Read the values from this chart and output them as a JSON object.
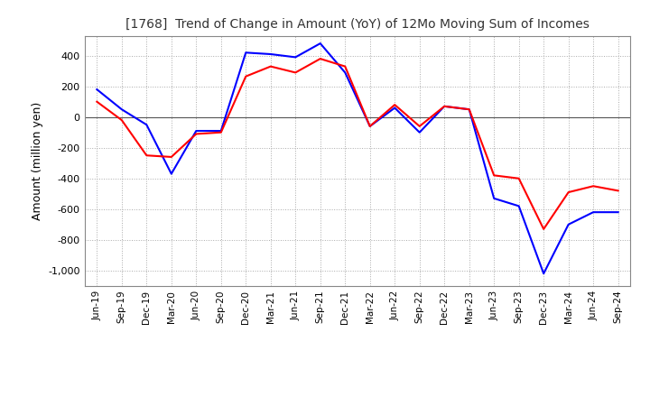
{
  "title": "[1768]  Trend of Change in Amount (YoY) of 12Mo Moving Sum of Incomes",
  "ylabel": "Amount (million yen)",
  "ylim": [
    -1100,
    530
  ],
  "yticks": [
    400,
    200,
    0,
    -200,
    -400,
    -600,
    -800,
    -1000
  ],
  "background_color": "#ffffff",
  "grid_color": "#aaaaaa",
  "ordinary_income_color": "#0000ff",
  "net_income_color": "#ff0000",
  "x_labels": [
    "Jun-19",
    "Sep-19",
    "Dec-19",
    "Mar-20",
    "Jun-20",
    "Sep-20",
    "Dec-20",
    "Mar-21",
    "Jun-21",
    "Sep-21",
    "Dec-21",
    "Mar-22",
    "Jun-22",
    "Sep-22",
    "Dec-22",
    "Mar-23",
    "Jun-23",
    "Sep-23",
    "Dec-23",
    "Mar-24",
    "Jun-24",
    "Sep-24"
  ],
  "ordinary_income": [
    180,
    50,
    -50,
    -370,
    -90,
    -90,
    420,
    410,
    390,
    480,
    290,
    -60,
    60,
    -100,
    70,
    50,
    -530,
    -580,
    -1020,
    -700,
    -620,
    -620
  ],
  "net_income": [
    100,
    -20,
    -250,
    -260,
    -110,
    -100,
    265,
    330,
    290,
    380,
    330,
    -60,
    80,
    -60,
    70,
    50,
    -380,
    -400,
    -730,
    -490,
    -450,
    -480
  ]
}
